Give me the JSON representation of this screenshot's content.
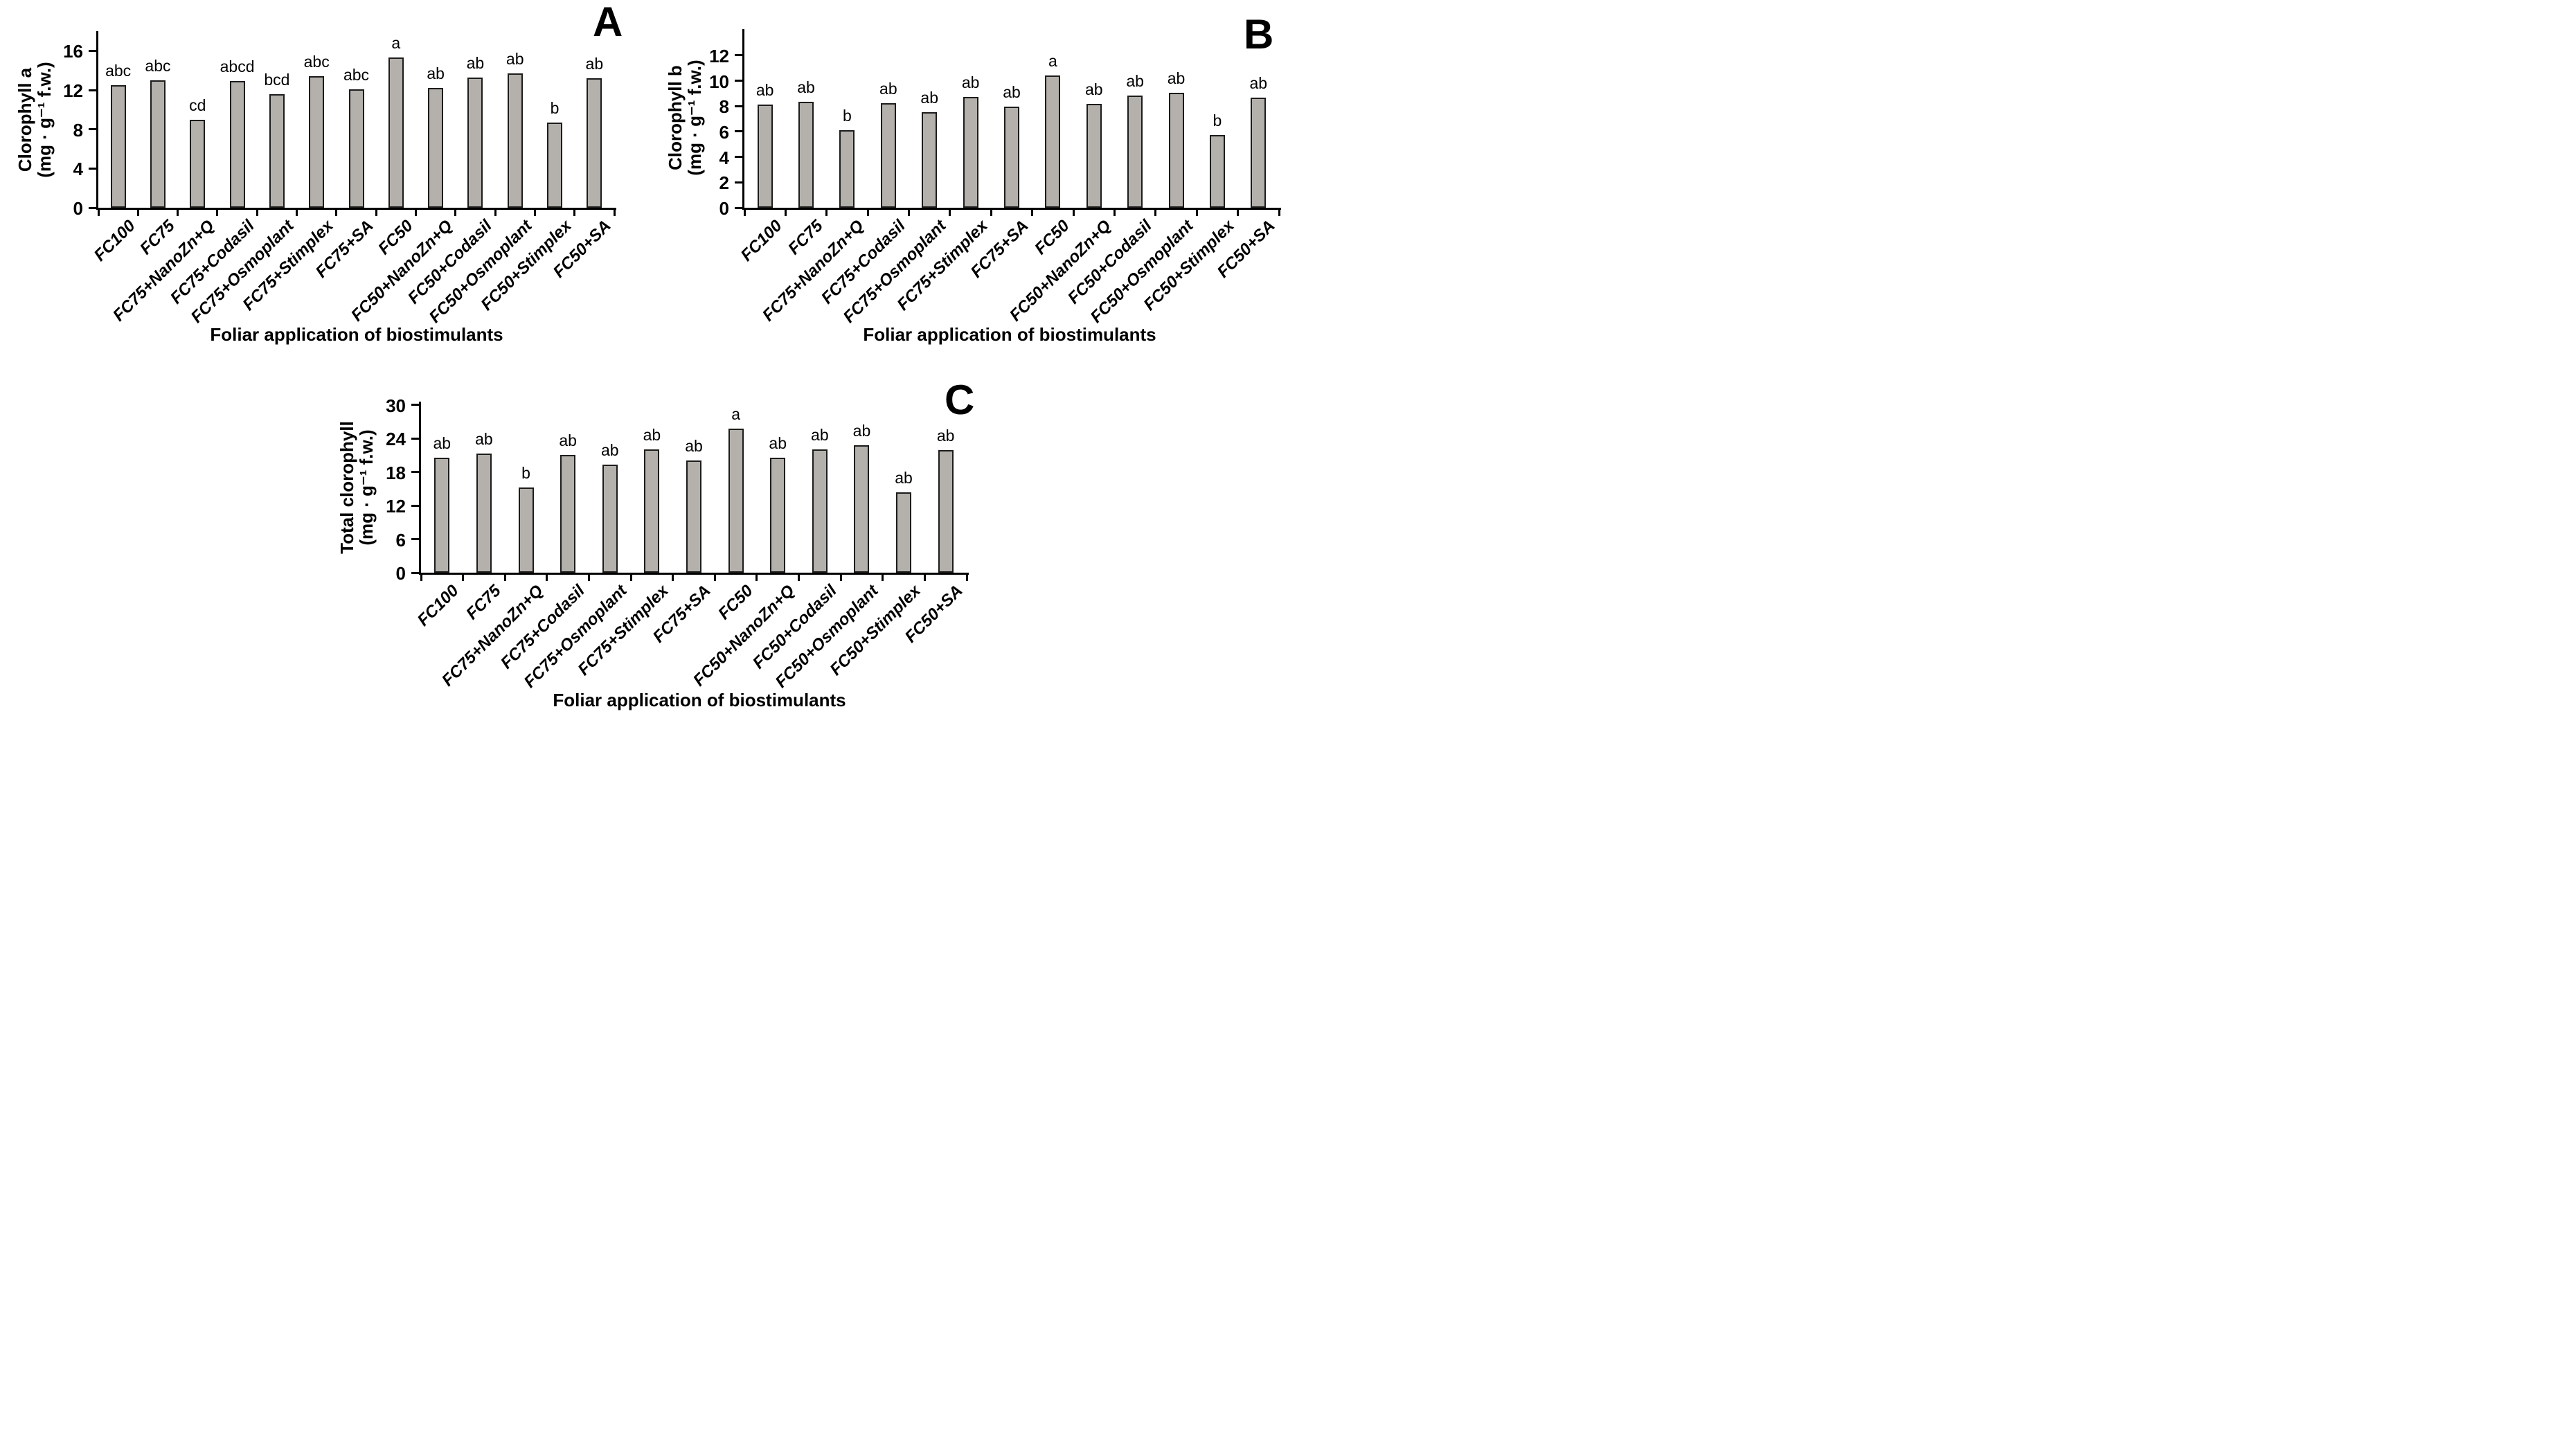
{
  "figure": {
    "x_axis_title": "Foliar application of biostimulants",
    "categories": [
      "FC100",
      "FC75",
      "FC75+NanoZn+Q",
      "FC75+Codasil",
      "FC75+Osmoplant",
      "FC75+Stimplex",
      "FC75+SA",
      "FC50",
      "FC50+NanoZn+Q",
      "FC50+Codasil",
      "FC50+Osmoplant",
      "FC50+Stimplex",
      "FC50+SA"
    ],
    "colors": {
      "bar_fill": "#b4b0ab",
      "bar_border": "#1c1c1c",
      "axis": "#000000",
      "text": "#000000",
      "background": "#ffffff"
    }
  },
  "chart_data": [
    {
      "type": "bar",
      "panel_label": "A",
      "ylabel_line1": "Clorophyll a",
      "ylabel_line2": "(mg · g⁻¹ f.w.)",
      "xlabel": "Foliar application of biostimulants",
      "categories": [
        "FC100",
        "FC75",
        "FC75+NanoZn+Q",
        "FC75+Codasil",
        "FC75+Osmoplant",
        "FC75+Stimplex",
        "FC75+SA",
        "FC50",
        "FC50+NanoZn+Q",
        "FC50+Codasil",
        "FC50+Osmoplant",
        "FC50+Stimplex",
        "FC50+SA"
      ],
      "values": [
        12.5,
        13.0,
        9.0,
        12.9,
        11.6,
        13.4,
        12.1,
        15.3,
        12.2,
        13.3,
        13.7,
        8.7,
        13.2
      ],
      "sig_letters": [
        "abc",
        "abc",
        "cd",
        "abcd",
        "bcd",
        "abc",
        "abc",
        "a",
        "ab",
        "ab",
        "ab",
        "b",
        "ab"
      ],
      "yticks": [
        0,
        4,
        8,
        12,
        16
      ],
      "ylim": [
        0,
        16
      ],
      "grid": false,
      "legend": "none"
    },
    {
      "type": "bar",
      "panel_label": "B",
      "ylabel_line1": "Clorophyll b",
      "ylabel_line2": "(mg · g⁻¹ f.w.)",
      "xlabel": "Foliar application of biostimulants",
      "categories": [
        "FC100",
        "FC75",
        "FC75+NanoZn+Q",
        "FC75+Codasil",
        "FC75+Osmoplant",
        "FC75+Stimplex",
        "FC75+SA",
        "FC50",
        "FC50+NanoZn+Q",
        "FC50+Codasil",
        "FC50+Osmoplant",
        "FC50+Stimplex",
        "FC50+SA"
      ],
      "values": [
        8.1,
        8.35,
        6.1,
        8.25,
        7.55,
        8.75,
        7.95,
        10.4,
        8.2,
        8.85,
        9.05,
        5.75,
        8.65
      ],
      "sig_letters": [
        "ab",
        "ab",
        "b",
        "ab",
        "ab",
        "ab",
        "ab",
        "a",
        "ab",
        "ab",
        "ab",
        "b",
        "ab"
      ],
      "yticks": [
        0,
        2,
        4,
        6,
        8,
        10,
        12
      ],
      "ylim": [
        0,
        12
      ],
      "grid": false,
      "legend": "none"
    },
    {
      "type": "bar",
      "panel_label": "C",
      "ylabel_line1": "Total clorophyll",
      "ylabel_line2": "(mg · g⁻¹ f.w.)",
      "xlabel": "Foliar application of biostimulants",
      "categories": [
        "FC100",
        "FC75",
        "FC75+NanoZn+Q",
        "FC75+Codasil",
        "FC75+Osmoplant",
        "FC75+Stimplex",
        "FC75+SA",
        "FC50",
        "FC50+NanoZn+Q",
        "FC50+Codasil",
        "FC50+Osmoplant",
        "FC50+Stimplex",
        "FC50+SA"
      ],
      "values": [
        20.6,
        21.3,
        15.2,
        21.1,
        19.3,
        22.1,
        20.1,
        25.8,
        20.6,
        22.1,
        22.8,
        14.4,
        21.9
      ],
      "sig_letters": [
        "ab",
        "ab",
        "b",
        "ab",
        "ab",
        "ab",
        "ab",
        "a",
        "ab",
        "ab",
        "ab",
        "ab",
        "ab"
      ],
      "yticks": [
        0,
        6,
        12,
        18,
        24,
        30
      ],
      "ylim": [
        0,
        30
      ],
      "grid": false,
      "legend": "none"
    }
  ]
}
